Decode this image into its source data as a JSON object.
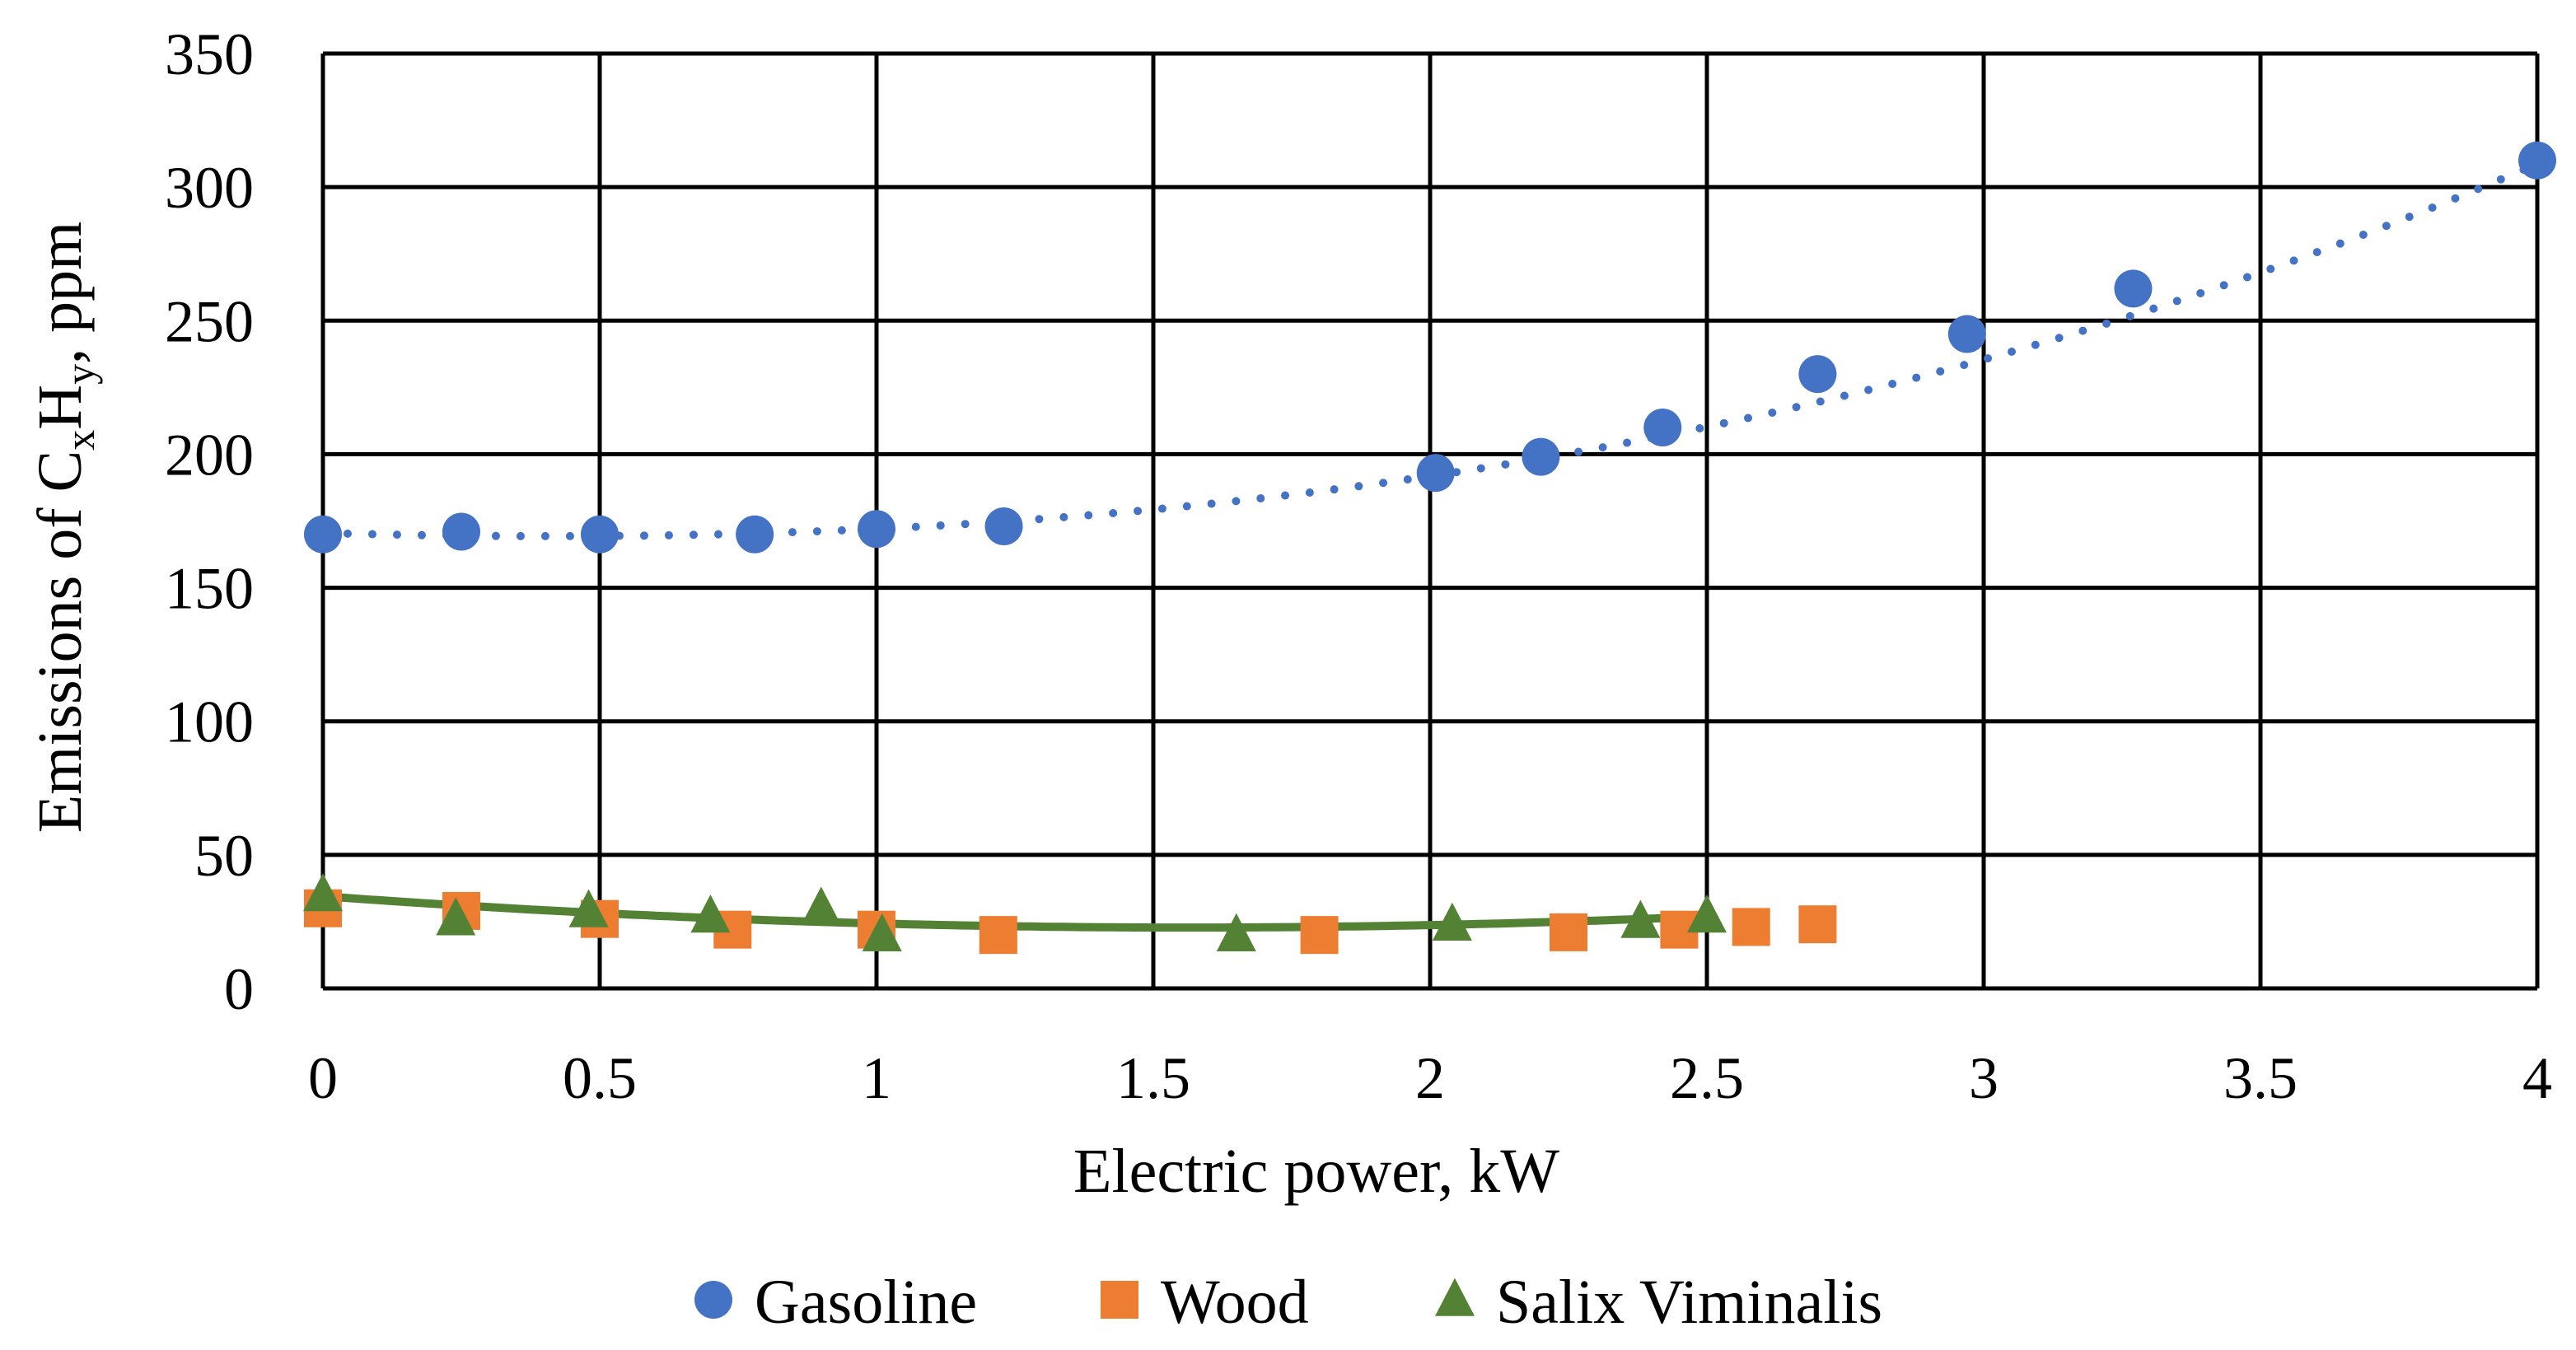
{
  "chart_data": {
    "type": "scatter",
    "title": "",
    "xlabel": "Electric power, kW",
    "ylabel": {
      "prefix": "Emissions of C",
      "sub_x": "x",
      "mid": "H",
      "sub_y": "y",
      "suffix": ", ppm"
    },
    "xlim": [
      0,
      4
    ],
    "ylim": [
      0,
      350
    ],
    "x_ticks": [
      "0",
      "0.5",
      "1",
      "1.5",
      "2",
      "2.5",
      "3",
      "3.5",
      "4"
    ],
    "y_ticks": [
      "0",
      "50",
      "100",
      "150",
      "200",
      "250",
      "300",
      "350"
    ],
    "grid": true,
    "legend_position": "bottom",
    "series": [
      {
        "name": "Gasoline",
        "color": "#4472C4",
        "marker": "circle",
        "trendline": "dotted-polynomial",
        "trend_coeffs": [
          170.5,
          -5.6,
          6.2,
          0.96
        ],
        "x": [
          0,
          0.25,
          0.5,
          0.78,
          1.0,
          1.23,
          2.01,
          2.2,
          2.42,
          2.7,
          2.97,
          3.27,
          4.0
        ],
        "y": [
          170,
          171,
          170,
          170,
          172,
          173,
          193,
          199,
          210,
          230,
          245,
          262,
          310
        ]
      },
      {
        "name": "Wood",
        "color": "#ED7D31",
        "marker": "square",
        "x": [
          0,
          0.25,
          0.5,
          0.74,
          1.0,
          1.22,
          1.8,
          2.25,
          2.45,
          2.58,
          2.7
        ],
        "y": [
          30,
          29,
          26,
          22,
          22,
          20,
          20,
          21,
          22,
          23,
          24
        ]
      },
      {
        "name": "Salix Viminalis",
        "color": "#548235",
        "marker": "triangle",
        "trendline": "solid-polynomial",
        "trend_coeffs": [
          34.5,
          -15,
          4.8,
          0
        ],
        "x": [
          0,
          0.24,
          0.48,
          0.7,
          0.9,
          1.01,
          1.65,
          2.04,
          2.38,
          2.5
        ],
        "y": [
          35,
          26,
          29,
          27,
          30,
          20,
          20,
          24,
          25,
          27
        ]
      }
    ]
  }
}
